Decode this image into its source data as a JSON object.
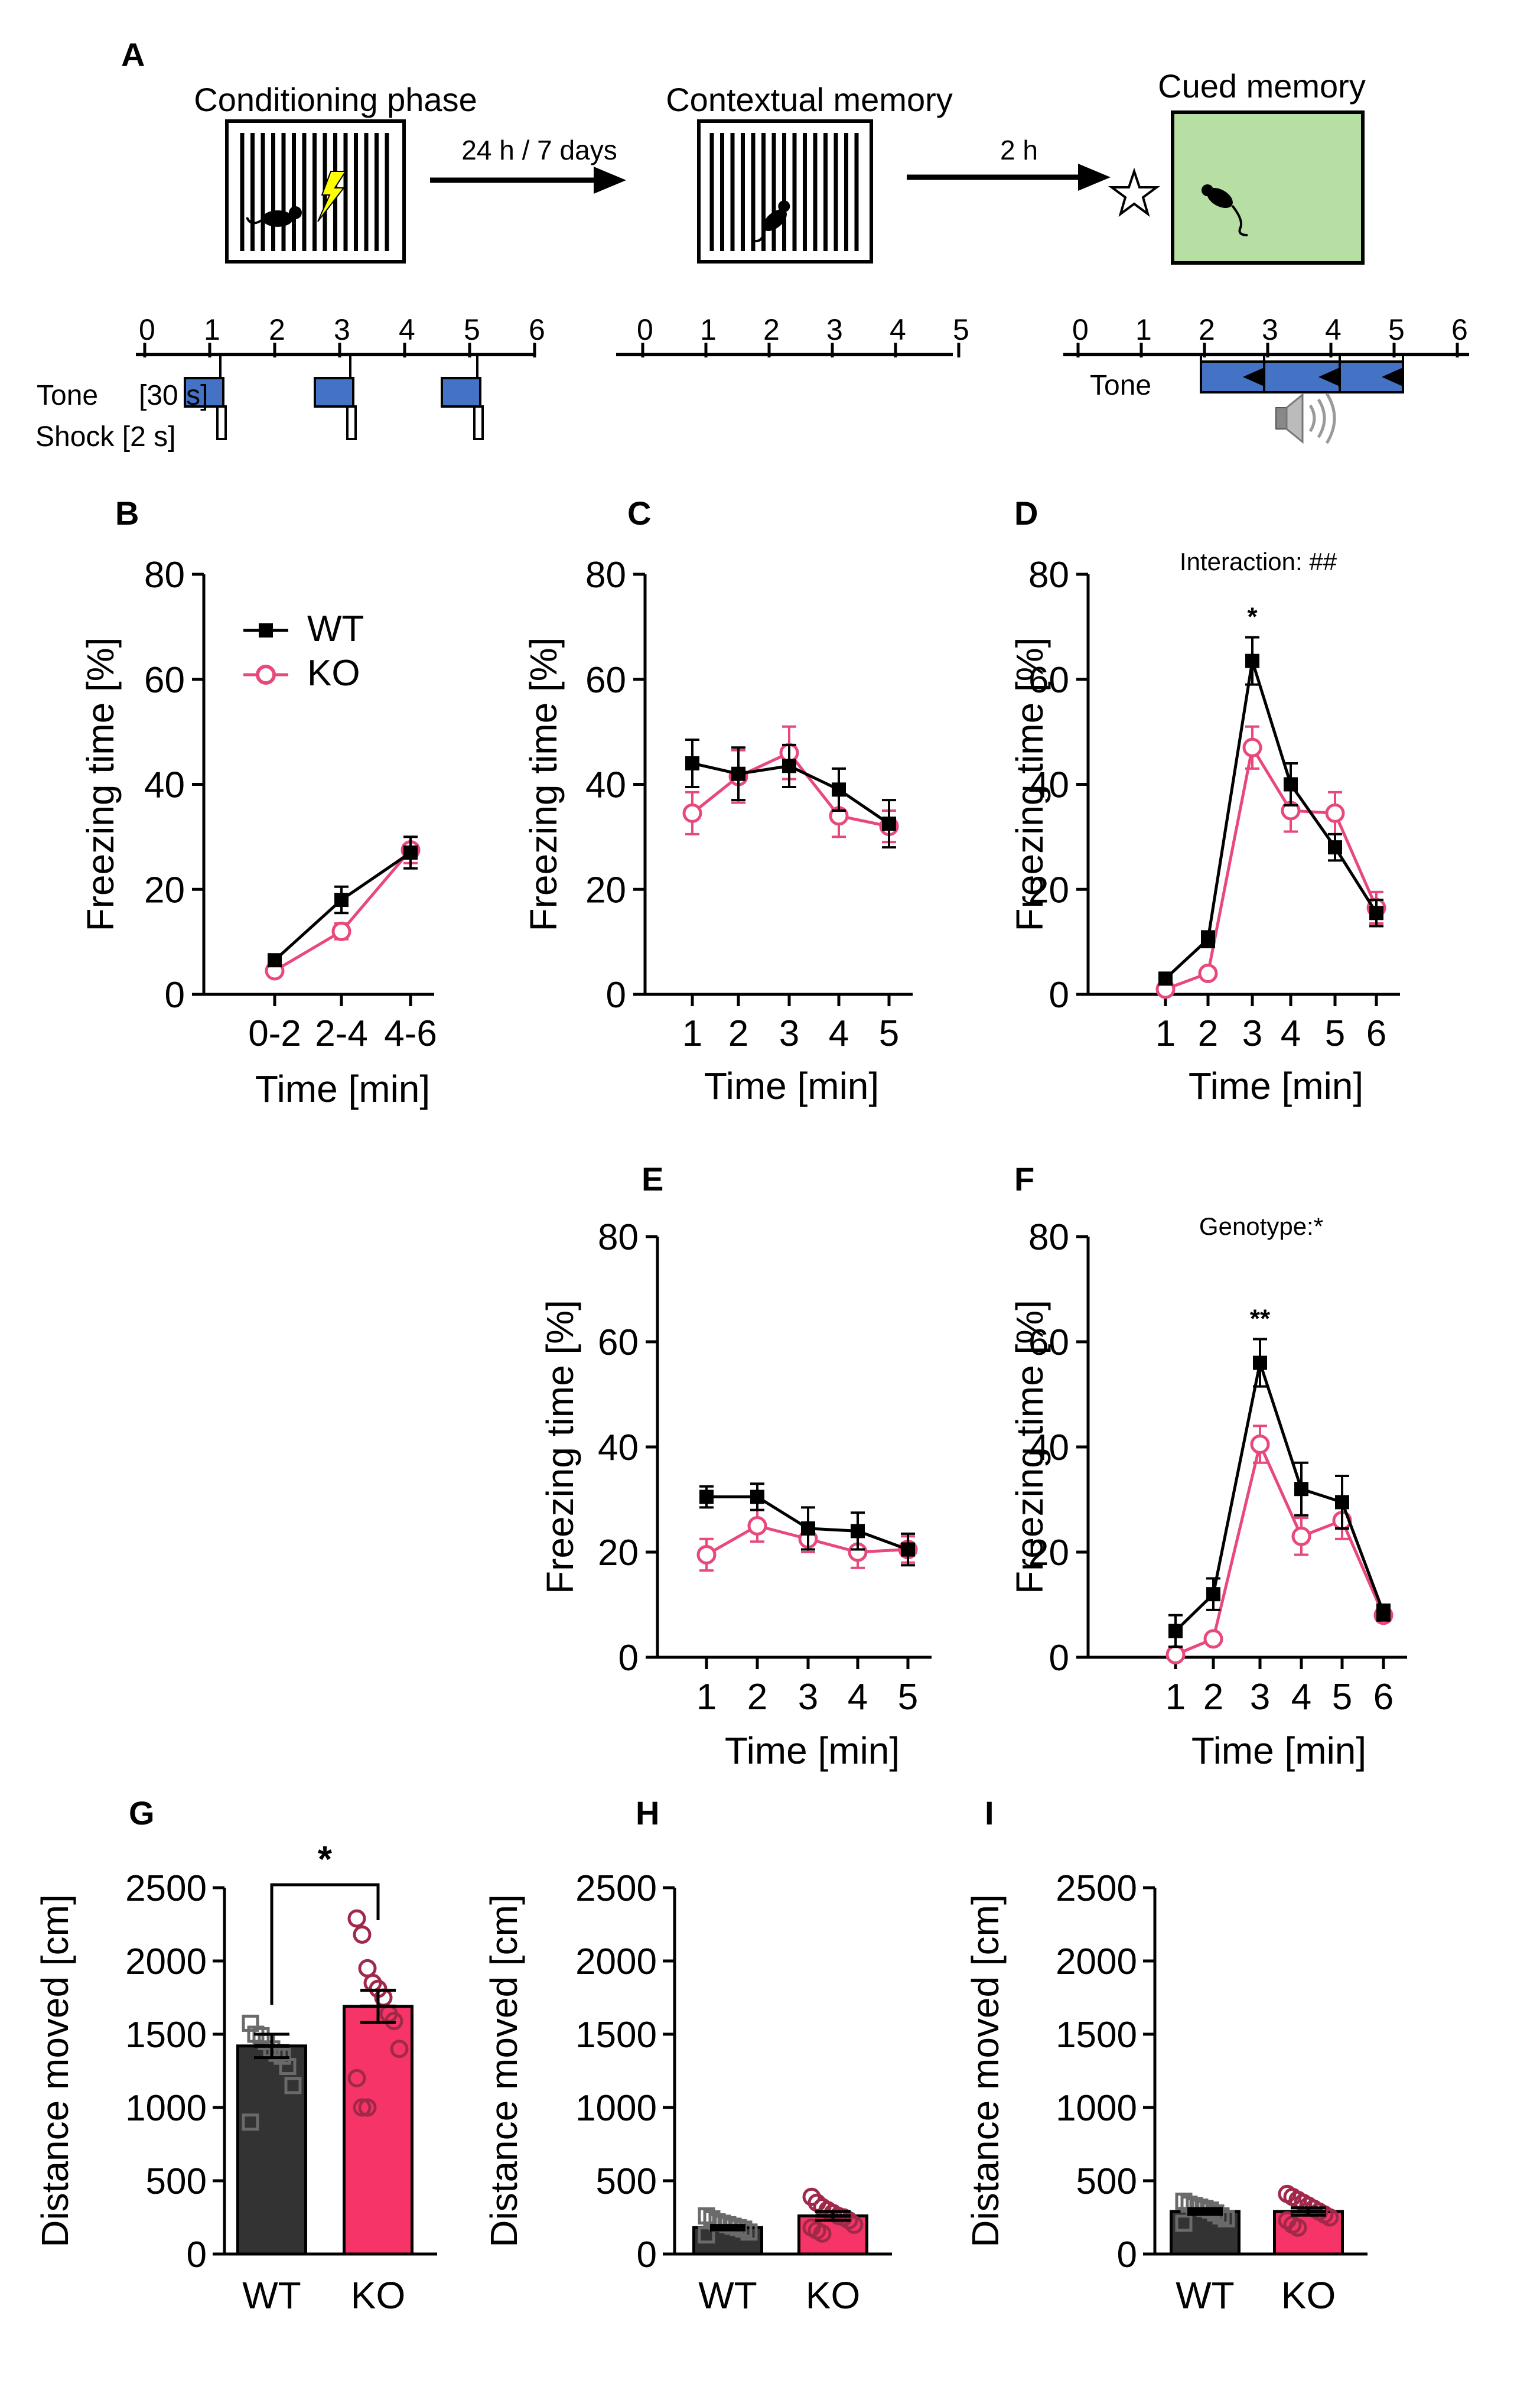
{
  "colors": {
    "wt": "#000000",
    "ko": "#e8487a",
    "wt_bar": "#333333",
    "ko_bar": "#f73467",
    "wt_dot": "#6a6a6a",
    "ko_dot": "#a0294a",
    "tone_box": "#4472c4",
    "context_b": "#b7dfa4",
    "bolt": "#ffff00"
  },
  "schematic": {
    "panel": "A",
    "conditioning_title": "Conditioning phase",
    "contextual_title": "Contextual memory",
    "cued_title": "Cued memory",
    "arrow1_label": "24 h / 7 days",
    "arrow2_label": "2 h",
    "timeline1_ticks": [
      "0",
      "1",
      "2",
      "3",
      "4",
      "5",
      "6"
    ],
    "timeline2_ticks": [
      "0",
      "1",
      "2",
      "3",
      "4",
      "5"
    ],
    "timeline3_ticks": [
      "0",
      "1",
      "2",
      "3",
      "4",
      "5",
      "6"
    ],
    "tone_label": "Tone",
    "tone_duration": "[30 s]",
    "shock_label": "Shock [2 s]",
    "cued_tone_label": "Tone"
  },
  "legend": {
    "wt": "WT",
    "ko": "KO"
  },
  "chart_data": [
    {
      "panel": "B",
      "type": "line",
      "title": "",
      "xlabel": "Time [min]",
      "ylabel": "Freezing time [%]",
      "categories": [
        "0-2",
        "2-4",
        "4-6"
      ],
      "ylim": [
        0,
        80
      ],
      "yticks": [
        "0",
        "20",
        "40",
        "60",
        "80"
      ],
      "series": [
        {
          "name": "WT",
          "values": [
            6.5,
            18,
            27
          ],
          "errors": [
            1,
            2.5,
            3
          ]
        },
        {
          "name": "KO",
          "values": [
            4.5,
            12,
            27.5
          ],
          "errors": [
            0.8,
            1.5,
            2.5
          ]
        }
      ],
      "annotation": "",
      "marks": []
    },
    {
      "panel": "C",
      "type": "line",
      "title": "",
      "xlabel": "Time [min]",
      "ylabel": "Freezing time [%]",
      "categories": [
        "1",
        "2",
        "3",
        "4",
        "5"
      ],
      "ylim": [
        0,
        80
      ],
      "yticks": [
        "0",
        "20",
        "40",
        "60",
        "80"
      ],
      "series": [
        {
          "name": "WT",
          "values": [
            44,
            42,
            43.5,
            39,
            32.5
          ],
          "errors": [
            4.5,
            5,
            4,
            4,
            4.5
          ]
        },
        {
          "name": "KO",
          "values": [
            34.5,
            41.5,
            46,
            34,
            32
          ],
          "errors": [
            4,
            5,
            5,
            4,
            3
          ]
        }
      ],
      "annotation": "",
      "marks": []
    },
    {
      "panel": "D",
      "type": "line",
      "title": "",
      "xlabel": "Time [min]",
      "ylabel": "Freezing time [%]",
      "categories": [
        "1",
        "2",
        "3",
        "4",
        "5",
        "6"
      ],
      "ylim": [
        0,
        80
      ],
      "yticks": [
        "0",
        "20",
        "40",
        "60",
        "80"
      ],
      "series": [
        {
          "name": "WT",
          "values": [
            3,
            10.5,
            63.5,
            40,
            28,
            15.5
          ],
          "errors": [
            0.8,
            1.5,
            4.5,
            4,
            2.5,
            2.5
          ]
        },
        {
          "name": "KO",
          "values": [
            1,
            4,
            47,
            35,
            34.5,
            16.5
          ],
          "errors": [
            0.5,
            0.8,
            4,
            4,
            4,
            3
          ]
        }
      ],
      "annotation": "Interaction: ##",
      "marks": [
        {
          "category": "3",
          "text": "*"
        }
      ]
    },
    {
      "panel": "E",
      "type": "line",
      "title": "",
      "xlabel": "Time [min]",
      "ylabel": "Freezing time [%]",
      "categories": [
        "1",
        "2",
        "3",
        "4",
        "5"
      ],
      "ylim": [
        0,
        80
      ],
      "yticks": [
        "0",
        "20",
        "40",
        "60",
        "80"
      ],
      "series": [
        {
          "name": "WT",
          "values": [
            30.5,
            30.5,
            24.5,
            24,
            20.5
          ],
          "errors": [
            2,
            2.5,
            4,
            3.5,
            3
          ]
        },
        {
          "name": "KO",
          "values": [
            19.5,
            25,
            22.5,
            20,
            20.5
          ],
          "errors": [
            3,
            3,
            2.5,
            3,
            2.5
          ]
        }
      ],
      "annotation": "",
      "marks": []
    },
    {
      "panel": "F",
      "type": "line",
      "title": "",
      "xlabel": "Time [min]",
      "ylabel": "Freezing time [%]",
      "categories": [
        "1",
        "2",
        "3",
        "4",
        "5",
        "6"
      ],
      "ylim": [
        0,
        80
      ],
      "yticks": [
        "0",
        "20",
        "40",
        "60",
        "80"
      ],
      "series": [
        {
          "name": "WT",
          "values": [
            5,
            12,
            56,
            32,
            29.5,
            8.5
          ],
          "errors": [
            3,
            3,
            4.5,
            5,
            5,
            1.5
          ]
        },
        {
          "name": "KO",
          "values": [
            0.5,
            3.5,
            40.5,
            23,
            26,
            8
          ],
          "errors": [
            0.3,
            0.8,
            3.5,
            3.5,
            3.5,
            1
          ]
        }
      ],
      "annotation": "Genotype:*",
      "marks": [
        {
          "category": "3",
          "text": "**"
        }
      ]
    },
    {
      "panel": "G",
      "type": "bar",
      "title": "",
      "xlabel": "",
      "ylabel": "Distance moved [cm]",
      "categories": [
        "WT",
        "KO"
      ],
      "ylim": [
        0,
        2500
      ],
      "yticks": [
        "0",
        "500",
        "1000",
        "1500",
        "2000",
        "2500"
      ],
      "values": [
        1420,
        1690
      ],
      "errors": [
        80,
        110
      ],
      "points": [
        [
          1575,
          1500,
          1490,
          1450,
          1400,
          1370,
          1350,
          1280,
          1150,
          900
        ],
        [
          2290,
          2180,
          1950,
          1850,
          1810,
          1750,
          1640,
          1590,
          1400,
          1200,
          1000,
          1000
        ]
      ],
      "significance": "*"
    },
    {
      "panel": "H",
      "type": "bar",
      "title": "",
      "xlabel": "",
      "ylabel": "Distance moved [cm]",
      "categories": [
        "WT",
        "KO"
      ],
      "ylim": [
        0,
        2500
      ],
      "yticks": [
        "0",
        "500",
        "1000",
        "1500",
        "2000",
        "2500"
      ],
      "values": [
        180,
        260
      ],
      "errors": [
        15,
        30
      ],
      "points": [
        [
          260,
          240,
          220,
          210,
          200,
          190,
          180,
          170,
          150,
          130
        ],
        [
          390,
          350,
          320,
          300,
          280,
          260,
          250,
          230,
          200,
          180,
          160,
          140
        ]
      ],
      "significance": ""
    },
    {
      "panel": "I",
      "type": "bar",
      "title": "",
      "xlabel": "",
      "ylabel": "Distance moved [cm]",
      "categories": [
        "WT",
        "KO"
      ],
      "ylim": [
        0,
        2500
      ],
      "yticks": [
        "0",
        "500",
        "1000",
        "1500",
        "2000",
        "2500"
      ],
      "values": [
        290,
        290
      ],
      "errors": [
        20,
        25
      ],
      "points": [
        [
          360,
          340,
          330,
          320,
          310,
          300,
          280,
          260,
          240,
          210
        ],
        [
          410,
          390,
          370,
          350,
          330,
          310,
          290,
          270,
          250,
          230,
          200,
          180
        ]
      ],
      "significance": ""
    }
  ]
}
